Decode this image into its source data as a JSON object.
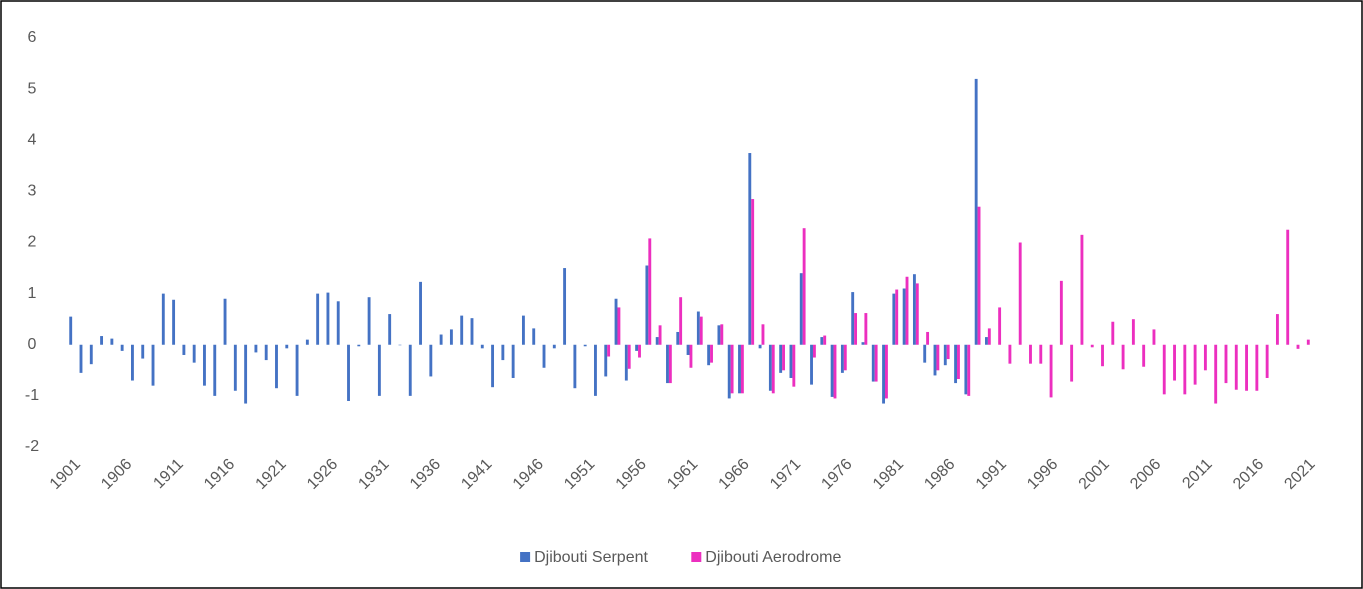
{
  "chart_data": {
    "type": "bar",
    "x": [
      1901,
      1902,
      1903,
      1904,
      1905,
      1906,
      1907,
      1908,
      1909,
      1910,
      1911,
      1912,
      1913,
      1914,
      1915,
      1916,
      1917,
      1918,
      1919,
      1920,
      1921,
      1922,
      1923,
      1924,
      1925,
      1926,
      1927,
      1928,
      1929,
      1930,
      1931,
      1932,
      1933,
      1934,
      1935,
      1936,
      1937,
      1938,
      1939,
      1940,
      1941,
      1942,
      1943,
      1944,
      1945,
      1946,
      1947,
      1948,
      1949,
      1950,
      1951,
      1952,
      1953,
      1954,
      1955,
      1956,
      1957,
      1958,
      1959,
      1960,
      1961,
      1962,
      1963,
      1964,
      1965,
      1966,
      1967,
      1968,
      1969,
      1970,
      1971,
      1972,
      1973,
      1974,
      1975,
      1976,
      1977,
      1978,
      1979,
      1980,
      1981,
      1982,
      1983,
      1984,
      1985,
      1986,
      1987,
      1988,
      1989,
      1990,
      1991,
      1992,
      1993,
      1994,
      1995,
      1996,
      1997,
      1998,
      1999,
      2000,
      2001,
      2002,
      2003,
      2004,
      2005,
      2006,
      2007,
      2008,
      2009,
      2010,
      2011,
      2012,
      2013,
      2014,
      2015,
      2016,
      2017,
      2018,
      2019,
      2020,
      2021
    ],
    "series": [
      {
        "name": "Djibouti Serpent",
        "color": "#4472c4",
        "values": [
          0.55,
          -0.55,
          -0.38,
          0.17,
          0.12,
          -0.12,
          -0.7,
          -0.27,
          -0.8,
          1.0,
          0.88,
          -0.2,
          -0.35,
          -0.8,
          -1.0,
          0.9,
          -0.9,
          -1.15,
          -0.15,
          -0.3,
          -0.85,
          -0.07,
          -1.0,
          0.1,
          1.0,
          1.02,
          0.85,
          -1.1,
          -0.03,
          0.93,
          -1.0,
          0.6,
          0,
          -1.0,
          1.23,
          -0.62,
          0.2,
          0.3,
          0.57,
          0.52,
          -0.07,
          -0.83,
          -0.3,
          -0.65,
          0.57,
          0.32,
          -0.45,
          -0.07,
          1.5,
          -0.85,
          -0.03,
          -1.0,
          -0.62,
          0.9,
          -0.7,
          -0.12,
          1.55,
          0.15,
          -0.75,
          0.25,
          -0.2,
          0.65,
          -0.4,
          0.38,
          -1.05,
          -0.95,
          3.75,
          -0.07,
          -0.9,
          -0.55,
          -0.65,
          1.4,
          -0.78,
          0.15,
          -1.02,
          -0.55,
          1.03,
          0.05,
          -0.72,
          -1.15,
          1.0,
          1.1,
          1.38,
          -0.35,
          -0.6,
          -0.4,
          -0.75,
          -0.97,
          5.2,
          0.15,
          null,
          null,
          null,
          null,
          null,
          null,
          null,
          null,
          null,
          null,
          null,
          null,
          null,
          null,
          null,
          null,
          null,
          null,
          null,
          null,
          null,
          null,
          null,
          null,
          null,
          null,
          null,
          null,
          null,
          null,
          null
        ]
      },
      {
        "name": "Djibouti Aerodrome",
        "color": "#ec2fbf",
        "values": [
          null,
          null,
          null,
          null,
          null,
          null,
          null,
          null,
          null,
          null,
          null,
          null,
          null,
          null,
          null,
          null,
          null,
          null,
          null,
          null,
          null,
          null,
          null,
          null,
          null,
          null,
          null,
          null,
          null,
          null,
          null,
          null,
          null,
          null,
          null,
          null,
          null,
          null,
          null,
          null,
          null,
          null,
          null,
          null,
          null,
          null,
          null,
          null,
          null,
          null,
          null,
          null,
          -0.23,
          0.73,
          -0.47,
          -0.25,
          2.08,
          0.38,
          -0.75,
          0.93,
          -0.45,
          0.55,
          -0.35,
          0.4,
          -0.95,
          -0.95,
          2.85,
          0.4,
          -0.95,
          -0.5,
          -0.82,
          2.28,
          -0.25,
          0.18,
          -1.05,
          -0.5,
          0.62,
          0.62,
          -0.72,
          -1.05,
          1.08,
          1.33,
          1.2,
          0.25,
          -0.5,
          -0.28,
          -0.67,
          -1.0,
          2.7,
          0.32,
          0.73,
          -0.37,
          2.0,
          -0.37,
          -0.37,
          -1.03,
          1.25,
          -0.72,
          2.15,
          -0.05,
          -0.42,
          0.45,
          -0.48,
          0.5,
          -0.43,
          0.3,
          -0.97,
          -0.7,
          -0.97,
          -0.78,
          -0.5,
          -1.15,
          -0.75,
          -0.88,
          -0.9,
          -0.9,
          -0.65,
          0.6,
          2.25,
          -0.08,
          0.1
        ]
      }
    ],
    "xlim": [
      1900.5,
      2021.5
    ],
    "xticks": [
      1901,
      1906,
      1911,
      1916,
      1921,
      1926,
      1931,
      1936,
      1941,
      1946,
      1951,
      1956,
      1961,
      1966,
      1971,
      1976,
      1981,
      1986,
      1991,
      1996,
      2001,
      2006,
      2011,
      2016,
      2021
    ],
    "ylim": [
      -2,
      6
    ],
    "yticks": [
      -2,
      -1,
      0,
      1,
      2,
      3,
      4,
      5,
      6
    ],
    "legend": "bottom"
  }
}
